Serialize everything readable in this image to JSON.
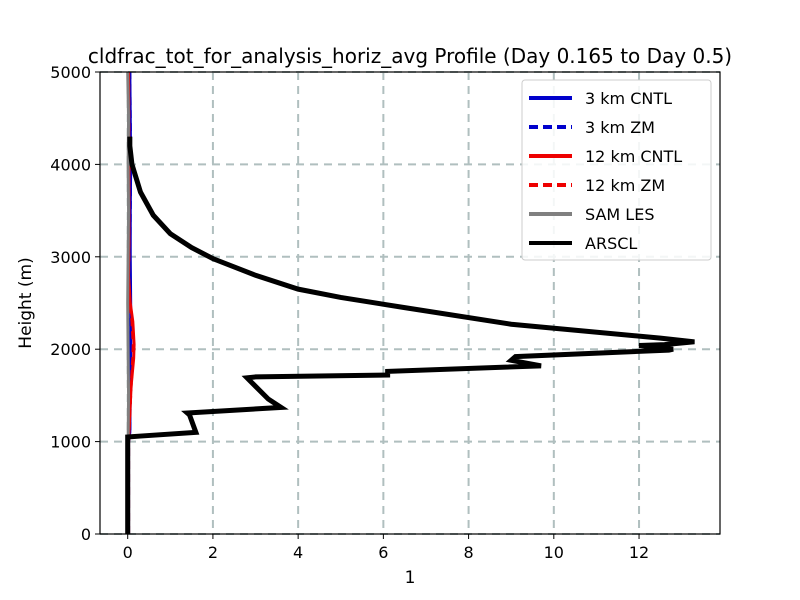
{
  "chart_data": {
    "type": "line",
    "title": "cldfrac_tot_for_analysis_horiz_avg Profile (Day 0.165 to Day 0.5)",
    "xlabel": "1",
    "ylabel": "Height (m)",
    "xlim": [
      -0.65,
      13.9
    ],
    "ylim": [
      0,
      5000
    ],
    "xticks": [
      0,
      2,
      4,
      6,
      8,
      10,
      12
    ],
    "yticks": [
      0,
      1000,
      2000,
      3000,
      4000,
      5000
    ],
    "grid": true,
    "legend_position": "top-right",
    "series": [
      {
        "name": "3 km CNTL",
        "color": "#0000cc",
        "dash": "solid",
        "points": [
          [
            0.02,
            0
          ],
          [
            0.02,
            1000
          ],
          [
            0.05,
            1100
          ],
          [
            0.06,
            1500
          ],
          [
            0.07,
            2000
          ],
          [
            0.07,
            2500
          ],
          [
            0.06,
            3000
          ],
          [
            0.06,
            3500
          ],
          [
            0.07,
            4000
          ],
          [
            0.06,
            4500
          ],
          [
            0.05,
            5000
          ]
        ]
      },
      {
        "name": "3 km ZM",
        "color": "#0000cc",
        "dash": "dashed",
        "points": [
          [
            0.02,
            0
          ],
          [
            0.02,
            1000
          ],
          [
            0.05,
            1100
          ],
          [
            0.06,
            1500
          ],
          [
            0.06,
            2000
          ],
          [
            0.06,
            2500
          ],
          [
            0.05,
            3000
          ],
          [
            0.06,
            3500
          ],
          [
            0.07,
            4000
          ],
          [
            0.06,
            4500
          ],
          [
            0.05,
            5000
          ]
        ]
      },
      {
        "name": "12 km CNTL",
        "color": "#ee0000",
        "dash": "solid",
        "points": [
          [
            0.02,
            0
          ],
          [
            0.02,
            1000
          ],
          [
            0.05,
            1300
          ],
          [
            0.08,
            1600
          ],
          [
            0.14,
            1900
          ],
          [
            0.15,
            2050
          ],
          [
            0.12,
            2300
          ],
          [
            0.06,
            2500
          ],
          [
            0.02,
            2800
          ],
          [
            0.03,
            3200
          ],
          [
            0.03,
            4000
          ],
          [
            0.02,
            5000
          ]
        ]
      },
      {
        "name": "12 km ZM",
        "color": "#ee0000",
        "dash": "dashed",
        "points": [
          [
            0.02,
            0
          ],
          [
            0.02,
            1000
          ],
          [
            0.05,
            1300
          ],
          [
            0.08,
            1600
          ],
          [
            0.12,
            1900
          ],
          [
            0.13,
            2050
          ],
          [
            0.1,
            2300
          ],
          [
            0.05,
            2500
          ],
          [
            0.02,
            2800
          ],
          [
            0.03,
            3200
          ],
          [
            0.03,
            4000
          ],
          [
            0.02,
            5000
          ]
        ]
      },
      {
        "name": "SAM LES",
        "color": "#808080",
        "dash": "solid",
        "points": [
          [
            0.01,
            0
          ],
          [
            0.01,
            1000
          ],
          [
            0.02,
            1500
          ],
          [
            0.01,
            2000
          ],
          [
            0.0,
            2500
          ],
          [
            0.01,
            3000
          ],
          [
            0.02,
            3500
          ],
          [
            0.01,
            4000
          ],
          [
            0.02,
            4500
          ],
          [
            0.0,
            5000
          ]
        ]
      },
      {
        "name": "ARSCL",
        "color": "#000000",
        "dash": "solid",
        "points": [
          [
            0.0,
            0
          ],
          [
            0.0,
            1050
          ],
          [
            0.3,
            1060
          ],
          [
            1.6,
            1100
          ],
          [
            1.45,
            1290
          ],
          [
            1.4,
            1310
          ],
          [
            3.6,
            1370
          ],
          [
            3.3,
            1460
          ],
          [
            2.8,
            1690
          ],
          [
            3.0,
            1700
          ],
          [
            6.1,
            1720
          ],
          [
            6.1,
            1760
          ],
          [
            9.7,
            1820
          ],
          [
            9.0,
            1880
          ],
          [
            9.1,
            1920
          ],
          [
            12.7,
            1990
          ],
          [
            12.8,
            2000
          ],
          [
            12.0,
            2040
          ],
          [
            12.6,
            2050
          ],
          [
            13.3,
            2080
          ],
          [
            12.5,
            2120
          ],
          [
            9.0,
            2270
          ],
          [
            6.5,
            2450
          ],
          [
            5.0,
            2560
          ],
          [
            4.0,
            2650
          ],
          [
            3.0,
            2800
          ],
          [
            2.0,
            2980
          ],
          [
            1.5,
            3100
          ],
          [
            1.0,
            3250
          ],
          [
            0.6,
            3450
          ],
          [
            0.3,
            3700
          ],
          [
            0.1,
            4000
          ],
          [
            0.05,
            4200
          ],
          [
            0.05,
            4300
          ]
        ]
      }
    ]
  }
}
